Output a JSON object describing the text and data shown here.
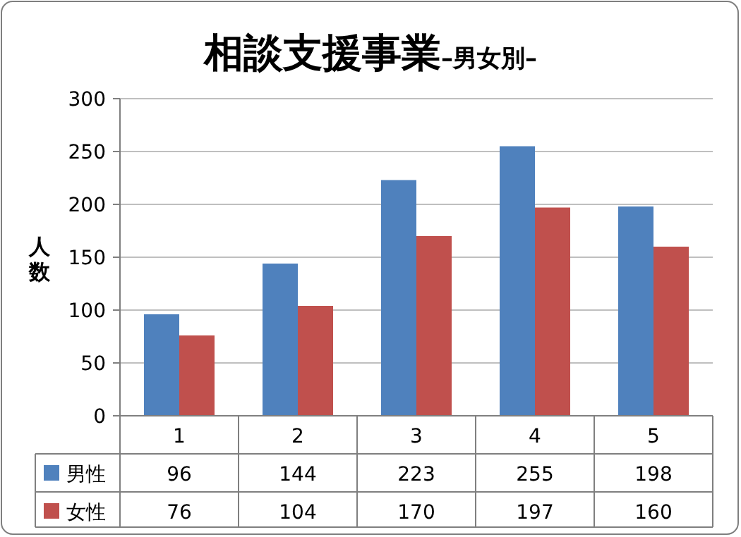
{
  "chart_data": {
    "type": "bar",
    "title": "相談支援事業",
    "subtitle": "–男女別–",
    "ylabel": "人数",
    "categories": [
      "1",
      "2",
      "3",
      "4",
      "5"
    ],
    "series": [
      {
        "name": "男性",
        "color": "#4f81bd",
        "values": [
          96,
          144,
          223,
          255,
          198
        ]
      },
      {
        "name": "女性",
        "color": "#c0504d",
        "values": [
          76,
          104,
          170,
          197,
          160
        ]
      }
    ],
    "ylim": [
      0,
      300
    ],
    "yticks": [
      0,
      50,
      100,
      150,
      200,
      250,
      300
    ],
    "grid": "y",
    "legend": "bottom",
    "data_labels": true
  }
}
